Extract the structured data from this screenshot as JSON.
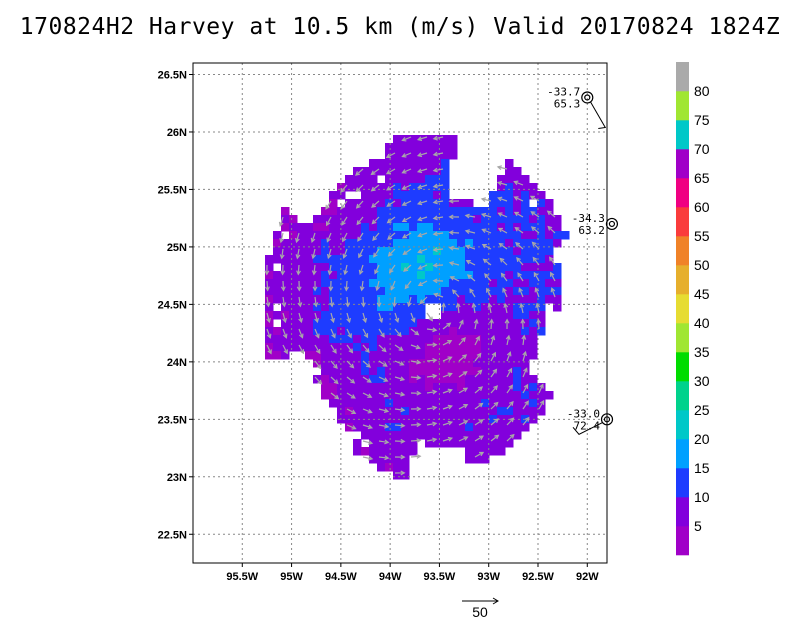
{
  "title": "170824H2 Harvey at 10.5 km (m/s) Valid 20170824 1824Z",
  "chart_data": {
    "type": "heatmap",
    "title": "170824H2 Harvey at 10.5 km (m/s) Valid 20170824 1824Z",
    "xlim": [
      -96,
      -91.8
    ],
    "ylim": [
      22.25,
      26.6
    ],
    "x_ticks": [
      {
        "v": -95.5,
        "label": "95.5W"
      },
      {
        "v": -95,
        "label": "95W"
      },
      {
        "v": -94.5,
        "label": "94.5W"
      },
      {
        "v": -94,
        "label": "94W"
      },
      {
        "v": -93.5,
        "label": "93.5W"
      },
      {
        "v": -93,
        "label": "93W"
      },
      {
        "v": -92.5,
        "label": "92.5W"
      },
      {
        "v": -92,
        "label": "92W"
      }
    ],
    "y_ticks": [
      {
        "v": 22.5,
        "label": "22.5N"
      },
      {
        "v": 23,
        "label": "23N"
      },
      {
        "v": 23.5,
        "label": "23.5N"
      },
      {
        "v": 24,
        "label": "24N"
      },
      {
        "v": 24.5,
        "label": "24.5N"
      },
      {
        "v": 25,
        "label": "25N"
      },
      {
        "v": 25.5,
        "label": "25.5N"
      },
      {
        "v": 26,
        "label": "26N"
      },
      {
        "v": 26.5,
        "label": "26.5N"
      }
    ],
    "grid": true,
    "colorbar": {
      "labels": [
        "5",
        "10",
        "15",
        "20",
        "25",
        "30",
        "35",
        "40",
        "45",
        "50",
        "55",
        "60",
        "65",
        "70",
        "75",
        "80"
      ],
      "colors": [
        "#a000c8",
        "#8200dc",
        "#1e3cff",
        "#00a0ff",
        "#00c8c8",
        "#00d28c",
        "#00dc00",
        "#a0e632",
        "#e6dc32",
        "#e6af2d",
        "#f08228",
        "#fa3c3c",
        "#f00082",
        "#a000c8",
        "#00c8c8",
        "#a0e632",
        "#aaaaaa"
      ]
    },
    "center": {
      "lon": -93.55,
      "lat": 24.45
    },
    "observations": [
      {
        "lon": -92.0,
        "lat": 26.3,
        "top": "-33.7",
        "bottom": "65.3"
      },
      {
        "lon": -91.75,
        "lat": 25.2,
        "top": "-34.3",
        "bottom": "63.2"
      },
      {
        "lon": -91.8,
        "lat": 23.5,
        "top": "-33.0",
        "bottom": "72.4"
      }
    ],
    "reference_vector": {
      "label": "50",
      "speed": 50
    }
  }
}
